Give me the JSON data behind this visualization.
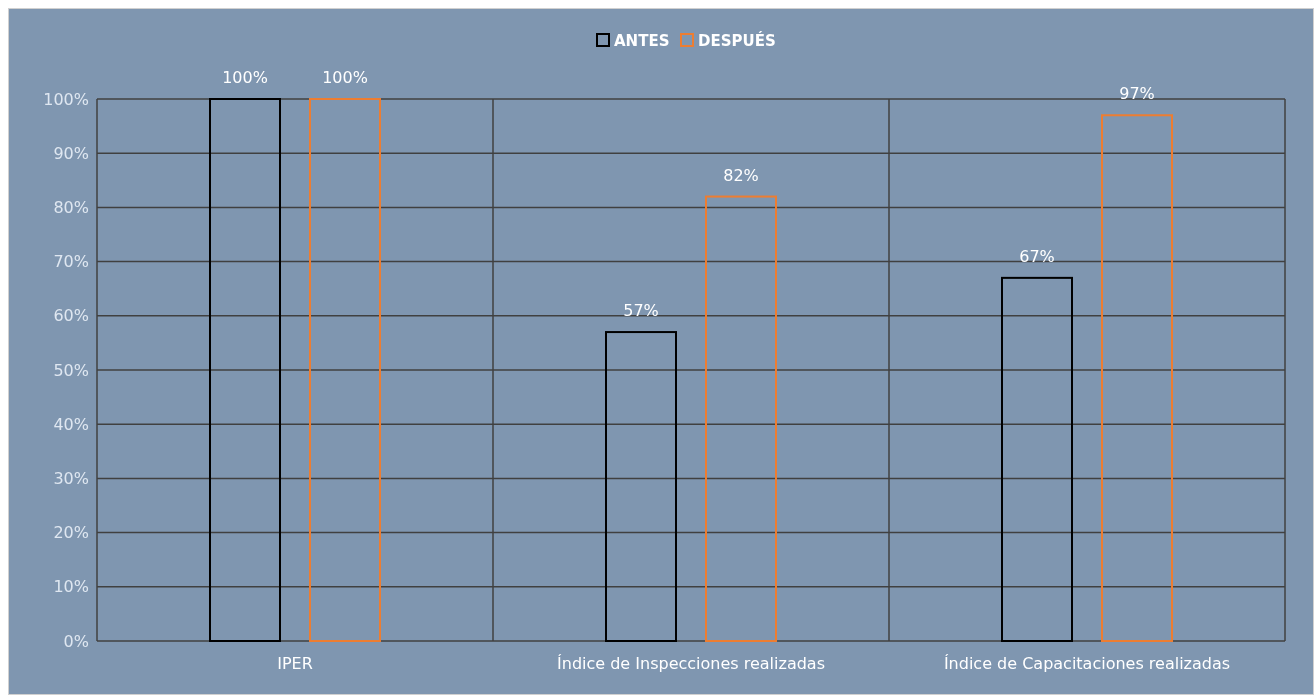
{
  "chart_data": {
    "type": "bar",
    "categories": [
      "IPER",
      "Índice de Inspecciones realizadas",
      "Índice de Capacitaciones realizadas"
    ],
    "series": [
      {
        "name": "ANTES",
        "color": "#000000",
        "values": [
          100,
          57,
          67
        ],
        "value_labels": [
          "100%",
          "57%",
          "67%"
        ]
      },
      {
        "name": "DESPUÉS",
        "color": "#ed7d31",
        "values": [
          100,
          82,
          97
        ],
        "value_labels": [
          "100%",
          "82%",
          "97%"
        ]
      }
    ],
    "ylim": [
      0,
      100
    ],
    "yticks": [
      {
        "value": 0,
        "label": "0%"
      },
      {
        "value": 10,
        "label": "10%"
      },
      {
        "value": 20,
        "label": "20%"
      },
      {
        "value": 30,
        "label": "30%"
      },
      {
        "value": 40,
        "label": "40%"
      },
      {
        "value": 50,
        "label": "50%"
      },
      {
        "value": 60,
        "label": "60%"
      },
      {
        "value": 70,
        "label": "70%"
      },
      {
        "value": 80,
        "label": "80%"
      },
      {
        "value": 90,
        "label": "90%"
      },
      {
        "value": 100,
        "label": "100%"
      }
    ],
    "grid": true,
    "legend": "top"
  }
}
